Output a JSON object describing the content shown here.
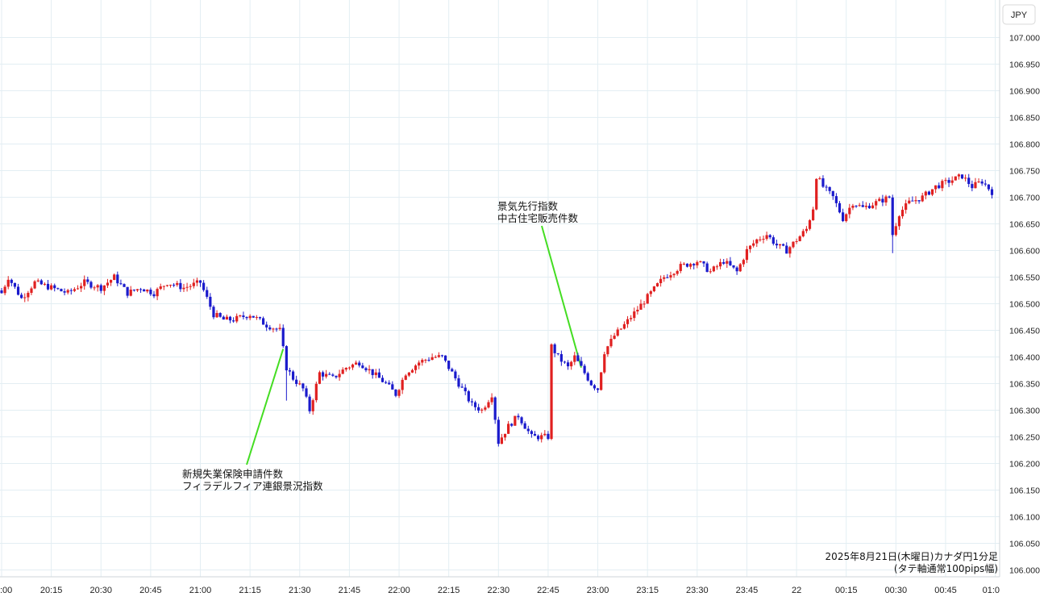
{
  "chart_data": {
    "type": "candlestick",
    "currency_label": "JPY",
    "caption_line1": "2025年8月21日(木曜日)カナダ円1分足",
    "caption_line2": "(タテ軸通常100pips幅)",
    "ylim": [
      106.0,
      107.05
    ],
    "y_ticks": [
      "107.000",
      "106.950",
      "106.900",
      "106.850",
      "106.800",
      "106.750",
      "106.700",
      "106.650",
      "106.600",
      "106.550",
      "106.500",
      "106.450",
      "106.400",
      "106.350",
      "106.300",
      "106.250",
      "106.200",
      "106.150",
      "106.100",
      "106.050",
      "106.000"
    ],
    "x_ticks": [
      ":00",
      "20:15",
      "20:30",
      "20:45",
      "21:00",
      "21:15",
      "21:30",
      "21:45",
      "22:00",
      "22:15",
      "22:30",
      "22:45",
      "23:00",
      "23:15",
      "23:30",
      "23:45",
      "22",
      "00:15",
      "00:30",
      "00:45",
      "01:0"
    ],
    "up_color": "#e02020",
    "down_color": "#1a1acc",
    "annotation_color": "#44dd22",
    "annotations": [
      {
        "line1": "新規失業保険申請件数",
        "line2": "フィラデルフィア連銀景況指数",
        "time_index": 85
      },
      {
        "line1": "景気先行指数",
        "line2": "中古住宅販売件数",
        "time_index": 175
      }
    ],
    "keypoints": [
      [
        0,
        106.52
      ],
      [
        2,
        106.55
      ],
      [
        6,
        106.51
      ],
      [
        10,
        106.54
      ],
      [
        15,
        106.53
      ],
      [
        20,
        106.52
      ],
      [
        25,
        106.54
      ],
      [
        30,
        106.53
      ],
      [
        34,
        106.55
      ],
      [
        38,
        106.52
      ],
      [
        42,
        106.53
      ],
      [
        46,
        106.52
      ],
      [
        50,
        106.54
      ],
      [
        55,
        106.53
      ],
      [
        60,
        106.54
      ],
      [
        62,
        106.51
      ],
      [
        64,
        106.48
      ],
      [
        67,
        106.47
      ],
      [
        70,
        106.47
      ],
      [
        75,
        106.48
      ],
      [
        80,
        106.46
      ],
      [
        84,
        106.45
      ],
      [
        86,
        106.38
      ],
      [
        88,
        106.36
      ],
      [
        91,
        106.34
      ],
      [
        93,
        106.3
      ],
      [
        96,
        106.37
      ],
      [
        100,
        106.36
      ],
      [
        104,
        106.38
      ],
      [
        108,
        106.39
      ],
      [
        112,
        106.37
      ],
      [
        116,
        106.35
      ],
      [
        119,
        106.33
      ],
      [
        122,
        106.37
      ],
      [
        126,
        106.39
      ],
      [
        130,
        106.4
      ],
      [
        133,
        106.4
      ],
      [
        136,
        106.37
      ],
      [
        139,
        106.34
      ],
      [
        142,
        106.31
      ],
      [
        145,
        106.3
      ],
      [
        148,
        106.33
      ],
      [
        150,
        106.24
      ],
      [
        153,
        106.27
      ],
      [
        156,
        106.29
      ],
      [
        160,
        106.25
      ],
      [
        163,
        106.25
      ],
      [
        165,
        106.25
      ],
      [
        166,
        106.42
      ],
      [
        168,
        106.4
      ],
      [
        171,
        106.38
      ],
      [
        173,
        106.4
      ],
      [
        176,
        106.37
      ],
      [
        178,
        106.35
      ],
      [
        180,
        106.34
      ],
      [
        182,
        106.41
      ],
      [
        185,
        106.44
      ],
      [
        188,
        106.46
      ],
      [
        192,
        106.49
      ],
      [
        196,
        106.52
      ],
      [
        200,
        106.55
      ],
      [
        205,
        106.57
      ],
      [
        210,
        106.58
      ],
      [
        214,
        106.56
      ],
      [
        218,
        106.58
      ],
      [
        222,
        106.56
      ],
      [
        225,
        106.6
      ],
      [
        228,
        106.62
      ],
      [
        231,
        106.63
      ],
      [
        234,
        106.61
      ],
      [
        237,
        106.6
      ],
      [
        240,
        106.62
      ],
      [
        243,
        106.64
      ],
      [
        245,
        106.68
      ],
      [
        246,
        106.74
      ],
      [
        248,
        106.72
      ],
      [
        251,
        106.7
      ],
      [
        254,
        106.66
      ],
      [
        257,
        106.69
      ],
      [
        260,
        106.68
      ],
      [
        264,
        106.69
      ],
      [
        268,
        106.7
      ],
      [
        269,
        106.63
      ],
      [
        271,
        106.67
      ],
      [
        274,
        106.69
      ],
      [
        278,
        106.7
      ],
      [
        282,
        106.72
      ],
      [
        286,
        106.73
      ],
      [
        290,
        106.74
      ],
      [
        293,
        106.72
      ],
      [
        296,
        106.73
      ],
      [
        299,
        106.71
      ]
    ]
  }
}
